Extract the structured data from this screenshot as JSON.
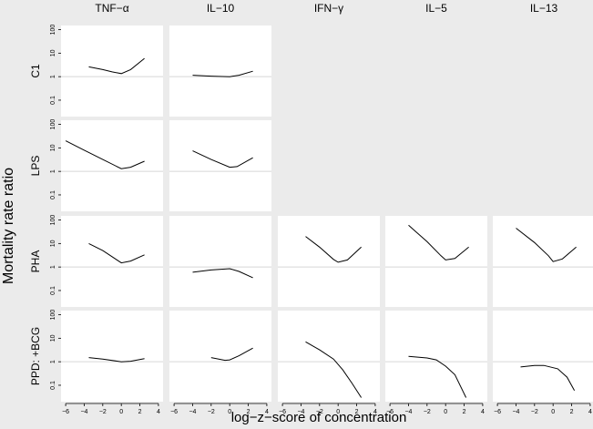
{
  "chart_data": {
    "type": "line",
    "ylabel": "Mortality rate ratio",
    "xlabel": "log−z−score of concentration",
    "y_scale": "log",
    "ylim": [
      0.02,
      150
    ],
    "xlim": [
      -6.5,
      4.5
    ],
    "y_ticks": [
      100,
      10,
      1,
      0.1
    ],
    "y_tick_labels": [
      "100",
      "10",
      "1",
      "0.1"
    ],
    "x_ticks": [
      -6,
      -4,
      -2,
      0,
      2,
      4
    ],
    "x_tick_labels": [
      "−6",
      "−4",
      "−2",
      "0",
      "2",
      "4"
    ],
    "reference_line_y": 1,
    "columns": [
      "TNF−α",
      "IL−10",
      "IFN−γ",
      "IL−5",
      "IL−13"
    ],
    "rows": [
      "C1",
      "LPS",
      "PHA",
      "PPD: +BCG"
    ],
    "panels": [
      {
        "row": 0,
        "col": 0,
        "x": [
          -3.5,
          -2,
          -1,
          0,
          1,
          2.5
        ],
        "y": [
          2.6,
          2.0,
          1.6,
          1.35,
          2.0,
          6.0
        ]
      },
      {
        "row": 0,
        "col": 1,
        "x": [
          -4,
          -2,
          0,
          1,
          2.5
        ],
        "y": [
          1.15,
          1.05,
          1.0,
          1.15,
          1.7
        ]
      },
      {
        "row": 1,
        "col": 0,
        "x": [
          -6,
          -4,
          -2,
          0,
          1,
          2.5
        ],
        "y": [
          20,
          8,
          3.2,
          1.3,
          1.5,
          2.7
        ]
      },
      {
        "row": 1,
        "col": 1,
        "x": [
          -4,
          -2,
          0,
          0.8,
          2.5
        ],
        "y": [
          7.5,
          3.2,
          1.5,
          1.6,
          3.8
        ]
      },
      {
        "row": 2,
        "col": 0,
        "x": [
          -3.5,
          -2,
          0,
          1,
          2.5
        ],
        "y": [
          10,
          5,
          1.5,
          1.8,
          3.3
        ]
      },
      {
        "row": 2,
        "col": 1,
        "x": [
          -4,
          -2,
          0,
          1,
          2.5
        ],
        "y": [
          0.6,
          0.75,
          0.85,
          0.65,
          0.35
        ]
      },
      {
        "row": 2,
        "col": 2,
        "x": [
          -3.5,
          -2,
          -0.5,
          0,
          1,
          2.5
        ],
        "y": [
          20,
          7,
          2.1,
          1.6,
          2.0,
          7.0
        ]
      },
      {
        "row": 2,
        "col": 3,
        "x": [
          -4,
          -2,
          -0.5,
          0,
          1,
          2.5
        ],
        "y": [
          60,
          12,
          3.0,
          2.0,
          2.3,
          7.0
        ]
      },
      {
        "row": 2,
        "col": 4,
        "x": [
          -4,
          -2,
          -0.5,
          0,
          1,
          2.5
        ],
        "y": [
          45,
          11,
          3.0,
          1.7,
          2.2,
          7.0
        ]
      },
      {
        "row": 3,
        "col": 0,
        "x": [
          -3.5,
          -2,
          0,
          1,
          2.5
        ],
        "y": [
          1.5,
          1.3,
          1.0,
          1.05,
          1.35
        ]
      },
      {
        "row": 3,
        "col": 1,
        "x": [
          -2,
          -0.5,
          0,
          1,
          2.5
        ],
        "y": [
          1.5,
          1.15,
          1.2,
          1.8,
          3.8
        ]
      },
      {
        "row": 3,
        "col": 2,
        "x": [
          -3.5,
          -2,
          -0.5,
          0.5,
          1.5,
          2.5
        ],
        "y": [
          7,
          3.2,
          1.3,
          0.45,
          0.12,
          0.03
        ]
      },
      {
        "row": 3,
        "col": 3,
        "x": [
          -4,
          -2,
          -1,
          0,
          1,
          2.2
        ],
        "y": [
          1.7,
          1.45,
          1.2,
          0.65,
          0.28,
          0.03
        ]
      },
      {
        "row": 3,
        "col": 4,
        "x": [
          -3.5,
          -2,
          -1,
          0.5,
          1.5,
          2.3
        ],
        "y": [
          0.6,
          0.7,
          0.7,
          0.5,
          0.22,
          0.06
        ]
      }
    ]
  }
}
